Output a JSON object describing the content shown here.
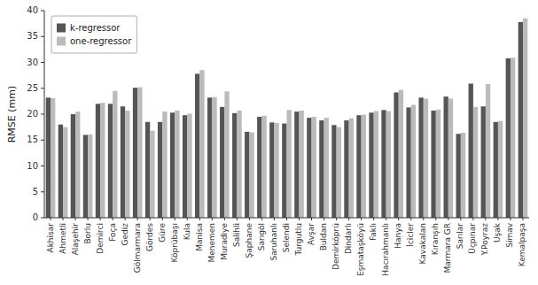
{
  "chart_data": {
    "type": "bar",
    "categories": [
      "Akhisar",
      "Ahmetli",
      "Alaşehir",
      "Borlu",
      "Demirci",
      "Foça",
      "Gediz",
      "Gölmarmara",
      "Gördes",
      "Güre",
      "Köprübaşı",
      "Kula",
      "Manisa",
      "Menemen",
      "Muradiye",
      "Salihli",
      "Şaphane",
      "Sarıgöl",
      "Saruhanlı",
      "Selendi",
      "Turgutlu",
      "Avşar",
      "Buldan",
      "Demirköprü",
      "Dindarlı",
      "Eşmataşköyü",
      "Faklı",
      "Hacırahmanlı",
      "Hanya",
      "İcicler",
      "Kavakalan",
      "Kıranşıh",
      "Marmara GR",
      "Sarılar",
      "Üçpınar",
      "Y.Poyraz",
      "Uşak",
      "Simav",
      "Kemalpaşa"
    ],
    "series": [
      {
        "name": "k-regressor",
        "color": "#555555",
        "values": [
          23.2,
          18.0,
          20.0,
          16.0,
          22.0,
          22.0,
          21.5,
          25.1,
          18.5,
          18.5,
          20.3,
          19.8,
          27.8,
          23.2,
          21.4,
          20.2,
          16.6,
          19.5,
          18.4,
          18.2,
          20.5,
          19.3,
          18.8,
          17.9,
          18.8,
          19.8,
          20.3,
          20.8,
          24.2,
          21.3,
          23.2,
          20.7,
          23.4,
          16.2,
          25.9,
          21.5,
          18.5,
          30.8,
          37.8
        ]
      },
      {
        "name": "one-regressor",
        "color": "#bbbbbb",
        "values": [
          23.1,
          17.5,
          20.5,
          16.1,
          22.2,
          24.5,
          20.7,
          25.2,
          16.8,
          20.5,
          20.7,
          20.1,
          28.5,
          23.3,
          24.4,
          20.7,
          16.5,
          19.7,
          18.3,
          20.8,
          20.7,
          19.5,
          19.3,
          17.5,
          19.2,
          19.9,
          20.6,
          20.6,
          24.7,
          21.8,
          23.0,
          20.9,
          23.0,
          16.4,
          21.4,
          25.8,
          18.7,
          30.9,
          38.5
        ]
      }
    ],
    "ylabel": "RMSE (mm)",
    "ylim": [
      0,
      40
    ],
    "yticks": [
      0,
      5,
      10,
      15,
      20,
      25,
      30,
      35,
      40
    ],
    "grid": false,
    "legend": "upper left"
  }
}
